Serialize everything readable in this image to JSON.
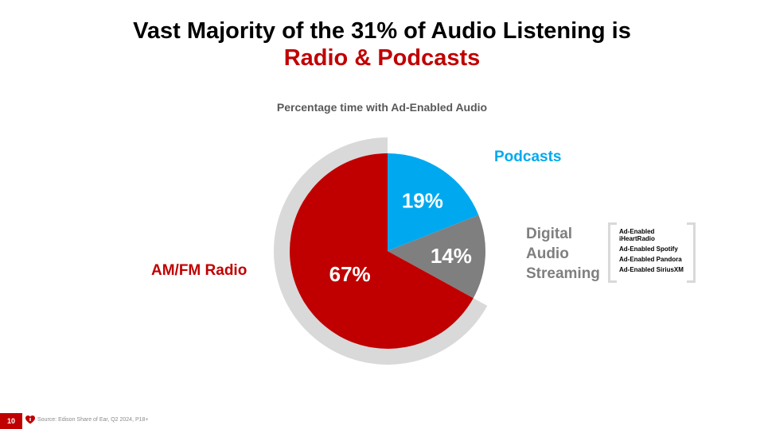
{
  "slide": {
    "title_line1": "Vast Majority of the 31% of Audio Listening is",
    "title_line2": "Radio & Podcasts",
    "page_number": "10",
    "source": "Source: Edison Share of Ear, Q2 2024, P18+",
    "logo_icon": "iheart-logo-icon"
  },
  "labels": {
    "podcasts": "Podcasts",
    "digital_line1": "Digital",
    "digital_line2": "Audio",
    "digital_line3": "Streaming",
    "amfm": "AM/FM Radio"
  },
  "platforms": [
    "Ad-Enabled iHeartRadio",
    "Ad-Enabled Spotify",
    "Ad-Enabled Pandora",
    "Ad-Enabled SiriusXM"
  ],
  "colors": {
    "red": "#c00000",
    "blue": "#00a9ef",
    "gray": "#7f7f7f",
    "ring": "#d9d9d9"
  },
  "chart_data": {
    "type": "pie",
    "title": "Percentage time with Ad-Enabled Audio",
    "slices": [
      {
        "label": "Podcasts",
        "value": 19,
        "display": "19%",
        "color": "#00a9ef"
      },
      {
        "label": "Digital Audio Streaming",
        "value": 14,
        "display": "14%",
        "color": "#7f7f7f"
      },
      {
        "label": "AM/FM Radio",
        "value": 67,
        "display": "67%",
        "color": "#c00000"
      }
    ]
  }
}
